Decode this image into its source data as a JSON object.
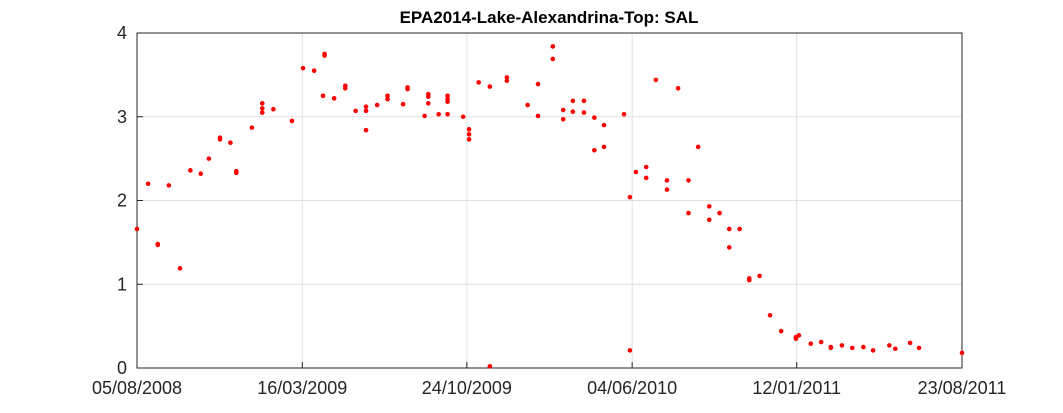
{
  "chart_data": {
    "type": "scatter",
    "title": "EPA2014-Lake-Alexandrina-Top: SAL",
    "x": [
      "2008-08-05",
      "2008-08-20",
      "2008-09-02",
      "2008-09-02",
      "2008-09-17",
      "2008-10-02",
      "2008-10-16",
      "2008-10-30",
      "2008-11-10",
      "2008-11-25",
      "2008-11-25",
      "2008-12-09",
      "2008-12-17",
      "2008-12-17",
      "2009-01-07",
      "2009-01-21",
      "2009-01-21",
      "2009-01-21",
      "2009-02-05",
      "2009-03-02",
      "2009-03-17",
      "2009-04-01",
      "2009-04-13",
      "2009-04-15",
      "2009-04-15",
      "2009-04-28",
      "2009-05-13",
      "2009-05-13",
      "2009-05-27",
      "2009-06-10",
      "2009-06-10",
      "2009-06-10",
      "2009-06-25",
      "2009-07-09",
      "2009-07-09",
      "2009-07-30",
      "2009-08-05",
      "2009-08-05",
      "2009-08-28",
      "2009-09-02",
      "2009-09-02",
      "2009-09-02",
      "2009-09-16",
      "2009-09-28",
      "2009-09-28",
      "2009-09-28",
      "2009-09-28",
      "2009-10-19",
      "2009-10-27",
      "2009-10-27",
      "2009-10-27",
      "2009-11-09",
      "2009-11-24",
      "2009-11-24",
      "2009-12-17",
      "2009-12-17",
      "2010-01-14",
      "2010-01-28",
      "2010-01-28",
      "2010-02-17",
      "2010-02-17",
      "2010-03-03",
      "2010-03-03",
      "2010-03-16",
      "2010-03-16",
      "2010-03-31",
      "2010-03-31",
      "2010-04-14",
      "2010-04-14",
      "2010-04-27",
      "2010-04-27",
      "2010-05-24",
      "2010-06-01",
      "2010-06-01",
      "2010-06-09",
      "2010-06-23",
      "2010-06-23",
      "2010-07-06",
      "2010-07-21",
      "2010-07-21",
      "2010-08-05",
      "2010-08-19",
      "2010-08-19",
      "2010-09-01",
      "2010-09-16",
      "2010-09-16",
      "2010-09-30",
      "2010-10-13",
      "2010-10-13",
      "2010-10-27",
      "2010-11-09",
      "2010-11-09",
      "2010-11-23",
      "2010-12-07",
      "2010-12-22",
      "2011-01-11",
      "2011-01-11",
      "2011-01-15",
      "2011-01-31",
      "2011-02-14",
      "2011-02-27",
      "2011-02-27",
      "2011-03-14",
      "2011-03-28",
      "2011-04-12",
      "2011-04-25",
      "2011-05-17",
      "2011-05-25",
      "2011-06-14",
      "2011-06-26",
      "2011-08-23"
    ],
    "values": [
      1.66,
      2.2,
      1.48,
      1.47,
      2.18,
      1.19,
      2.36,
      2.32,
      2.5,
      2.75,
      2.73,
      2.69,
      2.35,
      2.33,
      2.87,
      3.16,
      3.1,
      3.05,
      3.09,
      2.95,
      3.58,
      3.55,
      3.25,
      3.75,
      3.73,
      3.22,
      3.37,
      3.34,
      3.07,
      3.12,
      3.07,
      2.84,
      3.14,
      3.25,
      3.21,
      3.15,
      3.35,
      3.33,
      3.01,
      3.27,
      3.24,
      3.16,
      3.03,
      3.25,
      3.21,
      3.18,
      3.03,
      3.0,
      2.85,
      2.79,
      2.73,
      3.41,
      3.36,
      0.02,
      3.47,
      3.43,
      3.14,
      3.39,
      3.01,
      3.84,
      3.69,
      3.08,
      2.97,
      3.19,
      3.06,
      3.19,
      3.05,
      2.99,
      2.6,
      2.9,
      2.64,
      3.03,
      2.04,
      0.21,
      2.34,
      2.4,
      2.27,
      3.44,
      2.24,
      2.13,
      3.34,
      2.24,
      1.85,
      2.64,
      1.93,
      1.77,
      1.85,
      1.66,
      1.44,
      1.66,
      1.07,
      1.05,
      1.1,
      0.63,
      0.44,
      0.37,
      0.35,
      0.39,
      0.29,
      0.31,
      0.25,
      0.24,
      0.27,
      0.24,
      0.25,
      0.21,
      0.27,
      0.23,
      0.3,
      0.24,
      0.18
    ],
    "color": "#ff0000",
    "xlim": [
      "2008-08-05",
      "2011-08-23"
    ],
    "xticks": [
      {
        "value": "2008-08-05",
        "label": "05/08/2008"
      },
      {
        "value": "2009-03-16",
        "label": "16/03/2009"
      },
      {
        "value": "2009-10-24",
        "label": "24/10/2009"
      },
      {
        "value": "2010-06-04",
        "label": "04/06/2010"
      },
      {
        "value": "2011-01-12",
        "label": "12/01/2011"
      },
      {
        "value": "2011-08-23",
        "label": "23/08/2011"
      }
    ],
    "ylim": [
      0,
      4
    ],
    "yticks": [
      0,
      1,
      2,
      3,
      4
    ],
    "grid": true
  }
}
